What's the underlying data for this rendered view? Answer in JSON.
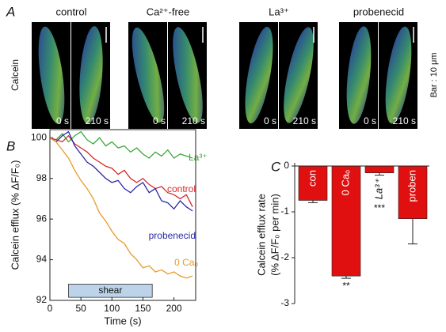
{
  "panel_a": {
    "label": "A",
    "ylabel": "Calcein",
    "scale_bar": "Bar : 10 μm",
    "conditions": [
      {
        "name": "control",
        "times": [
          "0 s",
          "210 s"
        ]
      },
      {
        "name": "Ca²⁺-free",
        "times": [
          "0 s",
          "210 s"
        ]
      },
      {
        "name": "La³⁺",
        "times": [
          "0 s",
          "210 s"
        ]
      },
      {
        "name": "probenecid",
        "times": [
          "0 s",
          "210 s"
        ]
      }
    ]
  },
  "chart_data": [
    {
      "type": "line",
      "label": "B",
      "xlabel": "Time (s)",
      "ylabel": "Calcein efflux (% ΔF/F₀)",
      "x": [
        0,
        10,
        20,
        30,
        40,
        50,
        60,
        70,
        80,
        90,
        100,
        110,
        120,
        130,
        140,
        150,
        160,
        170,
        180,
        190,
        200,
        210,
        220,
        230
      ],
      "series": [
        {
          "name": "La³⁺",
          "color": "#3aa83a",
          "values": [
            100,
            99.9,
            100.2,
            99.8,
            100.1,
            100.3,
            99.9,
            99.7,
            100.0,
            99.6,
            99.8,
            99.5,
            99.6,
            99.3,
            99.5,
            99.2,
            99.0,
            99.3,
            99.1,
            99.4,
            99.0,
            99.2,
            99.1,
            99.0
          ]
        },
        {
          "name": "control",
          "color": "#d62a2a",
          "values": [
            100,
            99.9,
            99.8,
            100.1,
            99.7,
            99.5,
            99.3,
            99.0,
            98.8,
            98.6,
            98.5,
            98.2,
            98.4,
            98.0,
            97.8,
            98.0,
            97.7,
            97.5,
            97.6,
            97.3,
            97.2,
            97.0,
            97.2,
            96.6
          ]
        },
        {
          "name": "probenecid",
          "color": "#2a2aa8",
          "values": [
            100,
            99.8,
            100.1,
            100.3,
            99.6,
            99.2,
            98.8,
            98.6,
            98.3,
            98.0,
            97.8,
            97.9,
            97.5,
            97.3,
            97.6,
            97.8,
            97.3,
            97.5,
            96.9,
            96.8,
            96.5,
            96.9,
            96.6,
            96.4
          ]
        },
        {
          "name": "0 Caₒ",
          "color": "#e89a2a",
          "values": [
            100,
            99.8,
            99.4,
            99.0,
            98.4,
            97.9,
            97.5,
            97.0,
            96.3,
            95.9,
            95.4,
            95.0,
            94.8,
            94.3,
            94.0,
            93.6,
            93.7,
            93.4,
            93.5,
            93.3,
            93.4,
            93.2,
            93.1,
            93.2
          ]
        }
      ],
      "xlim": [
        0,
        235
      ],
      "xticks": [
        0,
        50,
        100,
        150,
        200
      ],
      "ylim": [
        92,
        100.4
      ],
      "yticks": [
        92,
        94,
        96,
        98,
        100
      ],
      "shear": {
        "label": "shear",
        "x": [
          30,
          165
        ],
        "color": "#bcd3ea"
      }
    },
    {
      "type": "bar",
      "label": "C",
      "ylabel": [
        "Calcein efflux rate",
        "(% ΔF/F₀ per min)"
      ],
      "categories": [
        "con",
        "0 Caₒ",
        "La³⁺",
        "proben"
      ],
      "values": [
        -0.75,
        -2.4,
        -0.15,
        -1.15
      ],
      "errors": [
        0.05,
        0.05,
        0.05,
        0.55
      ],
      "significance": [
        null,
        "**",
        "***",
        null
      ],
      "color": "#e01010",
      "ylim": [
        -3,
        0
      ],
      "yticks": [
        0,
        -1,
        -2,
        -3
      ]
    }
  ]
}
